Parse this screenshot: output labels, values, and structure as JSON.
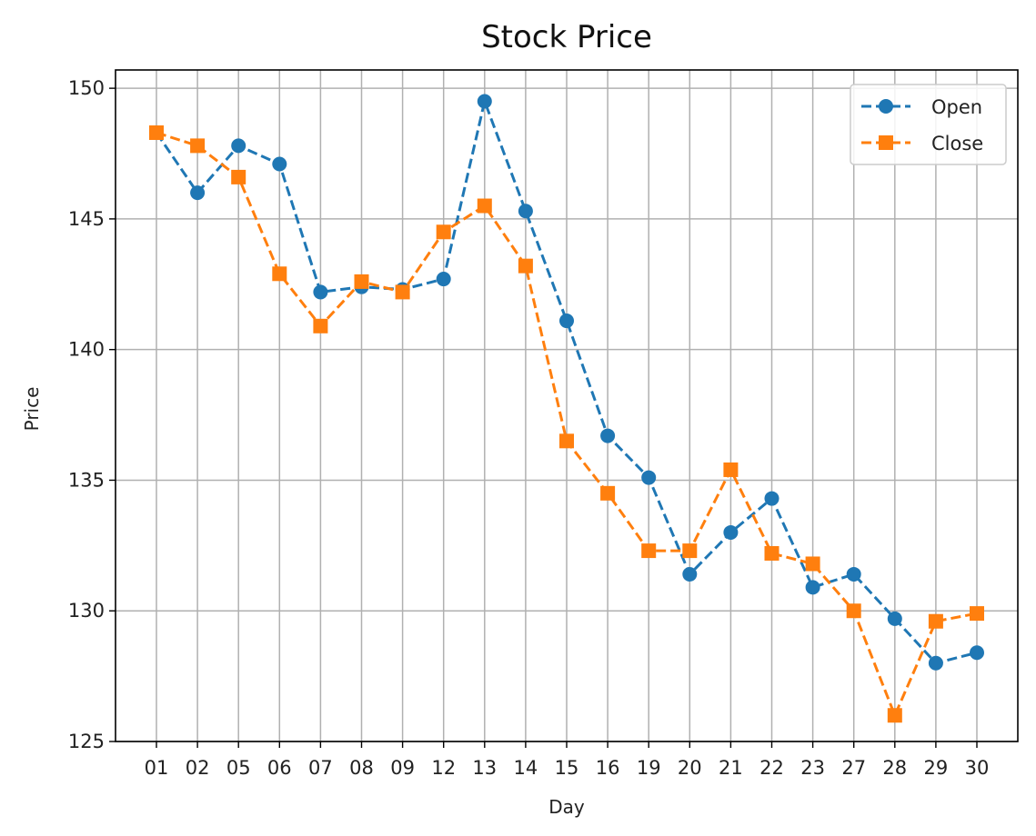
{
  "chart_data": {
    "type": "line",
    "title": "Stock Price",
    "xlabel": "Day",
    "ylabel": "Price",
    "categories": [
      "01",
      "02",
      "05",
      "06",
      "07",
      "08",
      "09",
      "12",
      "13",
      "14",
      "15",
      "16",
      "19",
      "20",
      "21",
      "22",
      "23",
      "27",
      "28",
      "29",
      "30"
    ],
    "ylim": [
      125,
      150.7
    ],
    "yticks": [
      125,
      130,
      135,
      140,
      145,
      150
    ],
    "grid": true,
    "legend_position": "top-right",
    "series": [
      {
        "name": "Open",
        "color": "#1f77b4",
        "marker": "circle",
        "linestyle": "dashed",
        "values": [
          148.3,
          146.0,
          147.8,
          147.1,
          142.2,
          142.4,
          142.3,
          142.7,
          149.5,
          145.3,
          141.1,
          136.7,
          135.1,
          131.4,
          133.0,
          134.3,
          130.9,
          131.4,
          129.7,
          128.0,
          128.4
        ]
      },
      {
        "name": "Close",
        "color": "#ff7f0e",
        "marker": "square",
        "linestyle": "dashed",
        "values": [
          148.3,
          147.8,
          146.6,
          142.9,
          140.9,
          142.6,
          142.2,
          144.5,
          145.5,
          143.2,
          136.5,
          134.5,
          132.3,
          132.3,
          135.4,
          132.2,
          131.8,
          130.0,
          126.0,
          129.6,
          129.9
        ]
      }
    ]
  }
}
